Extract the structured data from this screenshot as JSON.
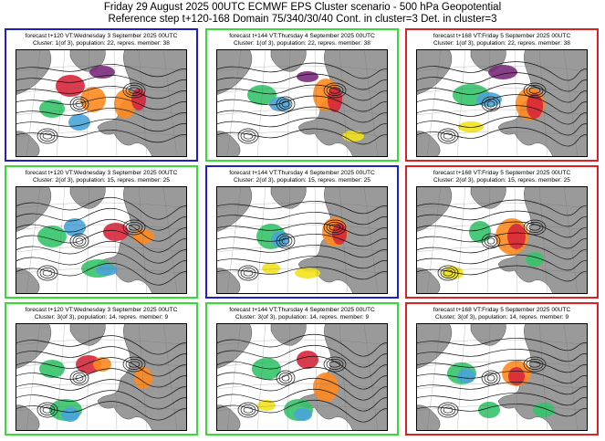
{
  "header": {
    "line1": "Friday 29 August 2025 00UTC ECMWF EPS Cluster scenario - 500 hPa Geopotential",
    "line2": "Reference step t+120-168 Domain 75/340/30/40 Cont. in cluster=3 Det. in cluster=3"
  },
  "colors": {
    "blue_frame": "#1f1fc8",
    "green_frame": "#33dd33",
    "red_frame": "#e02020",
    "land": "#9a9a9a",
    "sea": "#ffffff"
  },
  "panels": [
    {
      "frame": "blue",
      "forecast": "forecast t+120 VT:Wednesday 3 September 2025 00UTC",
      "cluster": "Cluster: 1(of 3), population: 22, repres. member: 38"
    },
    {
      "frame": "green",
      "forecast": "forecast t+144 VT:Thursday 4 September 2025 00UTC",
      "cluster": "Cluster: 1(of 3), population: 22, repres. member: 38"
    },
    {
      "frame": "red",
      "forecast": "forecast t+168 VT:Friday 5 September 2025 00UTC",
      "cluster": "Cluster: 1(of 3), population: 22, repres. member: 38"
    },
    {
      "frame": "green",
      "forecast": "forecast t+120 VT:Wednesday 3 September 2025 00UTC",
      "cluster": "Cluster: 2(of 3), population: 15, repres. member: 25"
    },
    {
      "frame": "blue",
      "forecast": "forecast t+144 VT:Thursday 4 September 2025 00UTC",
      "cluster": "Cluster: 2(of 3), population: 15, repres. member: 25"
    },
    {
      "frame": "red",
      "forecast": "forecast t+168 VT:Friday 5 September 2025 00UTC",
      "cluster": "Cluster: 2(of 3), population: 15, repres. member: 25"
    },
    {
      "frame": "green",
      "forecast": "forecast t+120 VT:Wednesday 3 September 2025 00UTC",
      "cluster": "Cluster: 3(of 3), population: 14, repres. member: 9"
    },
    {
      "frame": "green",
      "forecast": "forecast t+144 VT:Thursday 4 September 2025 00UTC",
      "cluster": "Cluster: 3(of 3), population: 14, repres. member: 9"
    },
    {
      "frame": "red",
      "forecast": "forecast t+168 VT:Friday 5 September 2025 00UTC",
      "cluster": "Cluster: 3(of 3), population: 14, repres. member: 9"
    }
  ]
}
